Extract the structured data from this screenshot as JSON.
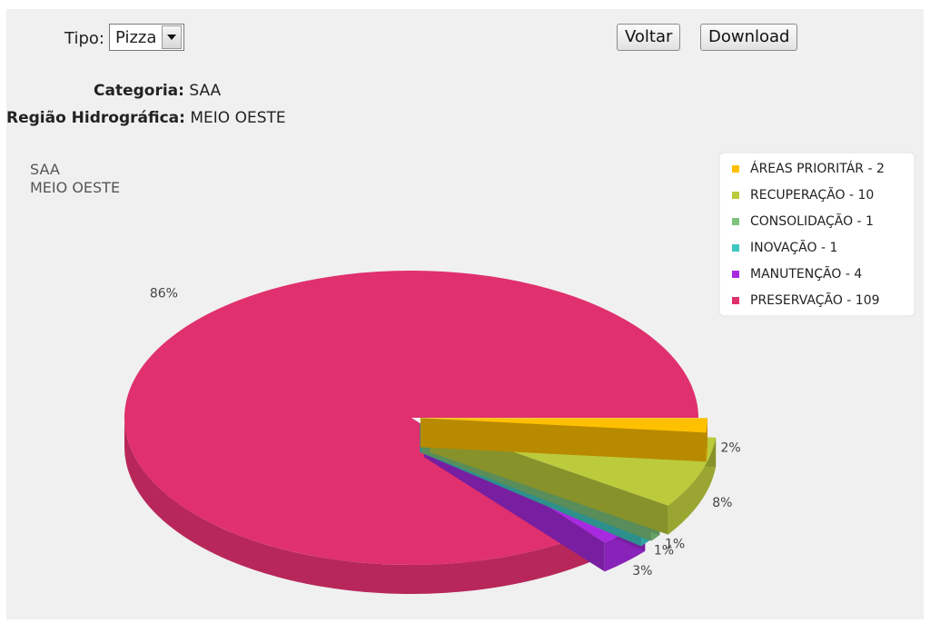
{
  "controls": {
    "tipo_label": "Tipo:",
    "tipo_value": "Pizza",
    "voltar_label": "Voltar",
    "download_label": "Download"
  },
  "info": {
    "categoria_label": "Categoria:",
    "categoria_value": "SAA",
    "regiao_label": "Região Hidrográfica:",
    "regiao_value": "MEIO OESTE"
  },
  "chart_data": {
    "type": "pie",
    "title": "SAA",
    "subtitle": "MEIO OESTE",
    "legend_position": "top-right",
    "slices": [
      {
        "name": "ÁREAS PRIORITÁR - 2",
        "value": 2,
        "label": "2%",
        "color": "#ffc000"
      },
      {
        "name": "RECUPERAÇÃO - 10",
        "value": 10,
        "label": "8%",
        "color": "#bccb3c"
      },
      {
        "name": "CONSOLIDAÇÃO - 1",
        "value": 1,
        "label": "1%",
        "color": "#7cc47c"
      },
      {
        "name": "INOVAÇÃO - 1",
        "value": 1,
        "label": "1%",
        "color": "#3ec8c2"
      },
      {
        "name": "MANUTENÇÃO - 4",
        "value": 4,
        "label": "3%",
        "color": "#a72ae0"
      },
      {
        "name": "PRESERVAÇÃO - 109",
        "value": 109,
        "label": "86%",
        "color": "#e0306e"
      }
    ]
  }
}
